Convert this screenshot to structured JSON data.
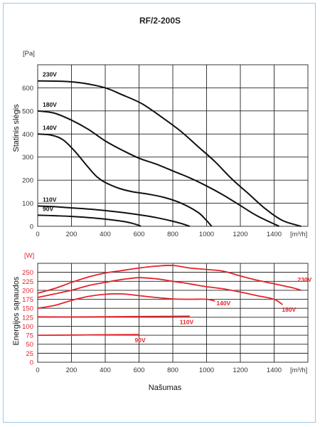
{
  "chart_data": [
    {
      "type": "line",
      "title": "RF/2-200S",
      "ylabel": "Statinis slėgis",
      "yunit": "[Pa]",
      "xunit": "[m³/h]",
      "xlim": [
        0,
        1600
      ],
      "ylim": [
        0,
        700
      ],
      "xticks": [
        "0",
        "200",
        "400",
        "600",
        "800",
        "1000",
        "1200",
        "1400"
      ],
      "yticks": [
        "0",
        "100",
        "200",
        "300",
        "400",
        "500",
        "600"
      ],
      "series": [
        {
          "name": "230V",
          "points": [
            [
              0,
              630
            ],
            [
              150,
              628
            ],
            [
              270,
              620
            ],
            [
              400,
              600
            ],
            [
              500,
              570
            ],
            [
              620,
              530
            ],
            [
              750,
              465
            ],
            [
              850,
              410
            ],
            [
              950,
              345
            ],
            [
              1050,
              280
            ],
            [
              1150,
              205
            ],
            [
              1250,
              140
            ],
            [
              1350,
              75
            ],
            [
              1450,
              25
            ],
            [
              1560,
              0
            ]
          ]
        },
        {
          "name": "180V",
          "points": [
            [
              0,
              500
            ],
            [
              100,
              490
            ],
            [
              200,
              460
            ],
            [
              300,
              420
            ],
            [
              400,
              370
            ],
            [
              500,
              330
            ],
            [
              600,
              295
            ],
            [
              700,
              270
            ],
            [
              800,
              240
            ],
            [
              900,
              210
            ],
            [
              1000,
              175
            ],
            [
              1100,
              135
            ],
            [
              1200,
              90
            ],
            [
              1300,
              45
            ],
            [
              1430,
              0
            ]
          ]
        },
        {
          "name": "140V",
          "points": [
            [
              0,
              400
            ],
            [
              80,
              395
            ],
            [
              150,
              375
            ],
            [
              220,
              325
            ],
            [
              300,
              255
            ],
            [
              350,
              215
            ],
            [
              400,
              190
            ],
            [
              480,
              165
            ],
            [
              560,
              150
            ],
            [
              650,
              140
            ],
            [
              750,
              125
            ],
            [
              850,
              100
            ],
            [
              950,
              60
            ],
            [
              1000,
              25
            ],
            [
              1030,
              0
            ]
          ]
        },
        {
          "name": "110V",
          "points": [
            [
              0,
              88
            ],
            [
              100,
              85
            ],
            [
              200,
              80
            ],
            [
              300,
              75
            ],
            [
              400,
              68
            ],
            [
              500,
              60
            ],
            [
              600,
              50
            ],
            [
              700,
              38
            ],
            [
              800,
              22
            ],
            [
              860,
              10
            ],
            [
              900,
              0
            ]
          ]
        },
        {
          "name": "90V",
          "points": [
            [
              0,
              48
            ],
            [
              100,
              46
            ],
            [
              200,
              43
            ],
            [
              300,
              38
            ],
            [
              400,
              31
            ],
            [
              500,
              22
            ],
            [
              560,
              13
            ],
            [
              600,
              4
            ],
            [
              610,
              0
            ]
          ]
        }
      ]
    },
    {
      "type": "line",
      "ylabel": "Energijos sąnaudos",
      "yunit": "[W]",
      "xunit": "[m³/h]",
      "xlabel": "Našumas",
      "xlim": [
        0,
        1600
      ],
      "ylim": [
        0,
        275
      ],
      "xticks": [
        "0",
        "200",
        "400",
        "600",
        "800",
        "1000",
        "1200",
        "1400"
      ],
      "yticks": [
        "0",
        "25",
        "50",
        "75",
        "100",
        "125",
        "150",
        "175",
        "200",
        "225",
        "250"
      ],
      "series": [
        {
          "name": "230V",
          "points": [
            [
              0,
              192
            ],
            [
              100,
              205
            ],
            [
              200,
              222
            ],
            [
              300,
              237
            ],
            [
              400,
              248
            ],
            [
              500,
              255
            ],
            [
              600,
              262
            ],
            [
              700,
              267
            ],
            [
              800,
              269
            ],
            [
              900,
              262
            ],
            [
              1000,
              258
            ],
            [
              1100,
              253
            ],
            [
              1200,
              240
            ],
            [
              1300,
              228
            ],
            [
              1400,
              218
            ],
            [
              1500,
              208
            ],
            [
              1560,
              200
            ]
          ]
        },
        {
          "name": "180V",
          "points": [
            [
              0,
              180
            ],
            [
              100,
              190
            ],
            [
              200,
              200
            ],
            [
              300,
              213
            ],
            [
              400,
              222
            ],
            [
              500,
              230
            ],
            [
              600,
              235
            ],
            [
              700,
              232
            ],
            [
              800,
              225
            ],
            [
              900,
              218
            ],
            [
              1000,
              210
            ],
            [
              1100,
              204
            ],
            [
              1200,
              195
            ],
            [
              1300,
              185
            ],
            [
              1400,
              175
            ],
            [
              1450,
              160
            ]
          ]
        },
        {
          "name": "140V",
          "points": [
            [
              0,
              150
            ],
            [
              100,
              158
            ],
            [
              200,
              172
            ],
            [
              300,
              183
            ],
            [
              400,
              189
            ],
            [
              500,
              190
            ],
            [
              600,
              185
            ],
            [
              700,
              180
            ],
            [
              800,
              176
            ],
            [
              900,
              175
            ],
            [
              1000,
              175
            ],
            [
              1050,
              170
            ]
          ]
        },
        {
          "name": "110V",
          "points": [
            [
              0,
              126
            ],
            [
              300,
              126
            ],
            [
              600,
              127
            ],
            [
              900,
              128
            ]
          ]
        },
        {
          "name": "90V",
          "points": [
            [
              0,
              75
            ],
            [
              300,
              76
            ],
            [
              600,
              77
            ]
          ]
        }
      ]
    }
  ]
}
